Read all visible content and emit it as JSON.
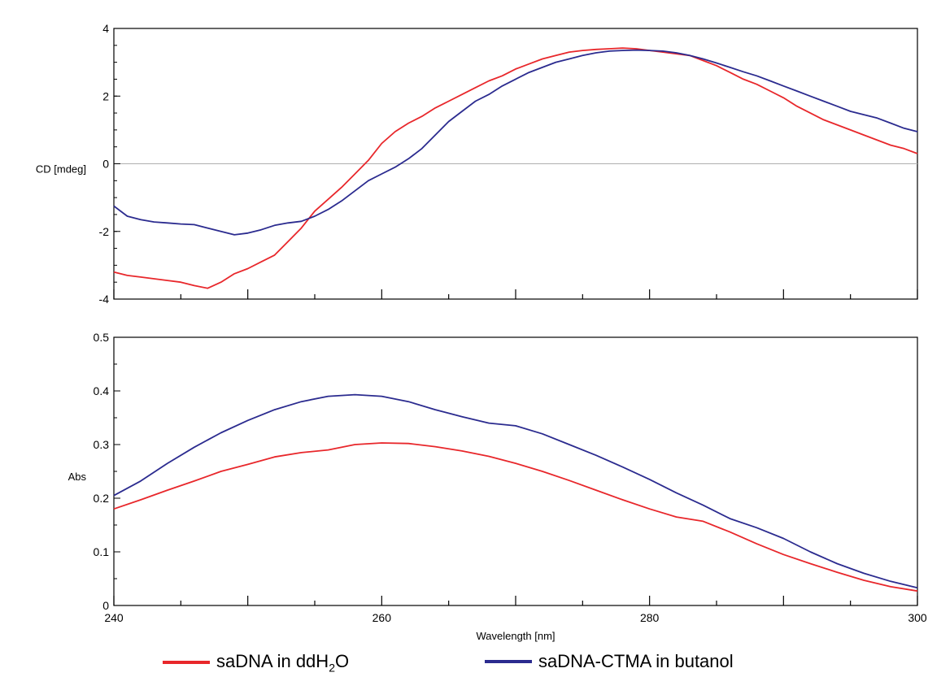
{
  "chart_data": [
    {
      "type": "line",
      "ylabel": "CD [mdeg]",
      "xlim": [
        240,
        300
      ],
      "ylim": [
        -4,
        4
      ],
      "yticks": [
        -4,
        -2,
        0,
        2,
        4
      ],
      "zero_line": true,
      "series": [
        {
          "name": "saDNA in ddH2O",
          "color": "#e8272b",
          "x": [
            240,
            241,
            242,
            243,
            244,
            245,
            246,
            247,
            248,
            249,
            250,
            251,
            252,
            253,
            254,
            255,
            256,
            257,
            258,
            259,
            260,
            261,
            262,
            263,
            264,
            265,
            266,
            267,
            268,
            269,
            270,
            271,
            272,
            273,
            274,
            275,
            276,
            277,
            278,
            279,
            280,
            281,
            282,
            283,
            284,
            285,
            286,
            287,
            288,
            289,
            290,
            291,
            292,
            293,
            294,
            295,
            296,
            297,
            298,
            299,
            300
          ],
          "y": [
            -3.2,
            -3.3,
            -3.35,
            -3.4,
            -3.45,
            -3.5,
            -3.6,
            -3.68,
            -3.5,
            -3.25,
            -3.1,
            -2.9,
            -2.7,
            -2.3,
            -1.9,
            -1.4,
            -1.05,
            -0.7,
            -0.3,
            0.1,
            0.6,
            0.95,
            1.2,
            1.4,
            1.65,
            1.85,
            2.05,
            2.25,
            2.45,
            2.6,
            2.8,
            2.95,
            3.1,
            3.2,
            3.3,
            3.35,
            3.38,
            3.4,
            3.42,
            3.4,
            3.35,
            3.3,
            3.25,
            3.2,
            3.05,
            2.9,
            2.7,
            2.5,
            2.35,
            2.15,
            1.95,
            1.7,
            1.5,
            1.3,
            1.15,
            1.0,
            0.85,
            0.7,
            0.55,
            0.45,
            0.3
          ]
        },
        {
          "name": "saDNA-CTMA in butanol",
          "color": "#2b2b8f",
          "x": [
            240,
            241,
            242,
            243,
            244,
            245,
            246,
            247,
            248,
            249,
            250,
            251,
            252,
            253,
            254,
            255,
            256,
            257,
            258,
            259,
            260,
            261,
            262,
            263,
            264,
            265,
            266,
            267,
            268,
            269,
            270,
            271,
            272,
            273,
            274,
            275,
            276,
            277,
            278,
            279,
            280,
            281,
            282,
            283,
            284,
            285,
            286,
            287,
            288,
            289,
            290,
            291,
            292,
            293,
            294,
            295,
            296,
            297,
            298,
            299,
            300
          ],
          "y": [
            -1.25,
            -1.55,
            -1.65,
            -1.72,
            -1.75,
            -1.78,
            -1.8,
            -1.9,
            -2.0,
            -2.1,
            -2.05,
            -1.95,
            -1.82,
            -1.75,
            -1.7,
            -1.55,
            -1.35,
            -1.1,
            -0.8,
            -0.5,
            -0.3,
            -0.1,
            0.15,
            0.45,
            0.85,
            1.25,
            1.55,
            1.85,
            2.05,
            2.3,
            2.5,
            2.7,
            2.85,
            3.0,
            3.1,
            3.2,
            3.28,
            3.33,
            3.35,
            3.36,
            3.35,
            3.33,
            3.28,
            3.2,
            3.1,
            2.98,
            2.85,
            2.72,
            2.6,
            2.45,
            2.3,
            2.15,
            2.0,
            1.85,
            1.7,
            1.55,
            1.45,
            1.35,
            1.2,
            1.05,
            0.95
          ]
        }
      ]
    },
    {
      "type": "line",
      "xlabel": "Wavelength [nm]",
      "ylabel": "Abs",
      "xlim": [
        240,
        300
      ],
      "ylim": [
        0,
        0.5
      ],
      "xticks": [
        240,
        260,
        280,
        300
      ],
      "yticks": [
        0,
        0.1,
        0.2,
        0.3,
        0.4,
        0.5
      ],
      "series": [
        {
          "name": "saDNA in ddH2O",
          "color": "#e8272b",
          "x": [
            240,
            242,
            244,
            246,
            248,
            250,
            252,
            254,
            256,
            258,
            260,
            262,
            264,
            266,
            268,
            270,
            272,
            274,
            276,
            278,
            280,
            282,
            284,
            286,
            288,
            290,
            292,
            294,
            296,
            298,
            300
          ],
          "y": [
            0.18,
            0.197,
            0.215,
            0.232,
            0.25,
            0.263,
            0.277,
            0.285,
            0.29,
            0.3,
            0.303,
            0.302,
            0.296,
            0.288,
            0.278,
            0.265,
            0.25,
            0.233,
            0.215,
            0.197,
            0.18,
            0.165,
            0.157,
            0.137,
            0.115,
            0.095,
            0.078,
            0.062,
            0.047,
            0.035,
            0.027
          ]
        },
        {
          "name": "saDNA-CTMA in butanol",
          "color": "#2b2b8f",
          "x": [
            240,
            242,
            244,
            246,
            248,
            250,
            252,
            254,
            256,
            258,
            260,
            262,
            264,
            266,
            268,
            270,
            272,
            274,
            276,
            278,
            280,
            282,
            284,
            286,
            288,
            290,
            292,
            294,
            296,
            298,
            300
          ],
          "y": [
            0.205,
            0.232,
            0.265,
            0.295,
            0.322,
            0.345,
            0.365,
            0.38,
            0.39,
            0.393,
            0.39,
            0.38,
            0.365,
            0.352,
            0.34,
            0.335,
            0.32,
            0.3,
            0.28,
            0.258,
            0.235,
            0.21,
            0.187,
            0.162,
            0.145,
            0.125,
            0.1,
            0.078,
            0.06,
            0.045,
            0.033
          ]
        }
      ]
    }
  ],
  "legend": {
    "items": [
      {
        "label_pre": "saDNA  in ddH",
        "label_sub": "2",
        "label_post": "O",
        "color": "#e8272b"
      },
      {
        "label_pre": "saDNA-CTMA in butanol",
        "label_sub": "",
        "label_post": "",
        "color": "#2b2b8f"
      }
    ]
  }
}
